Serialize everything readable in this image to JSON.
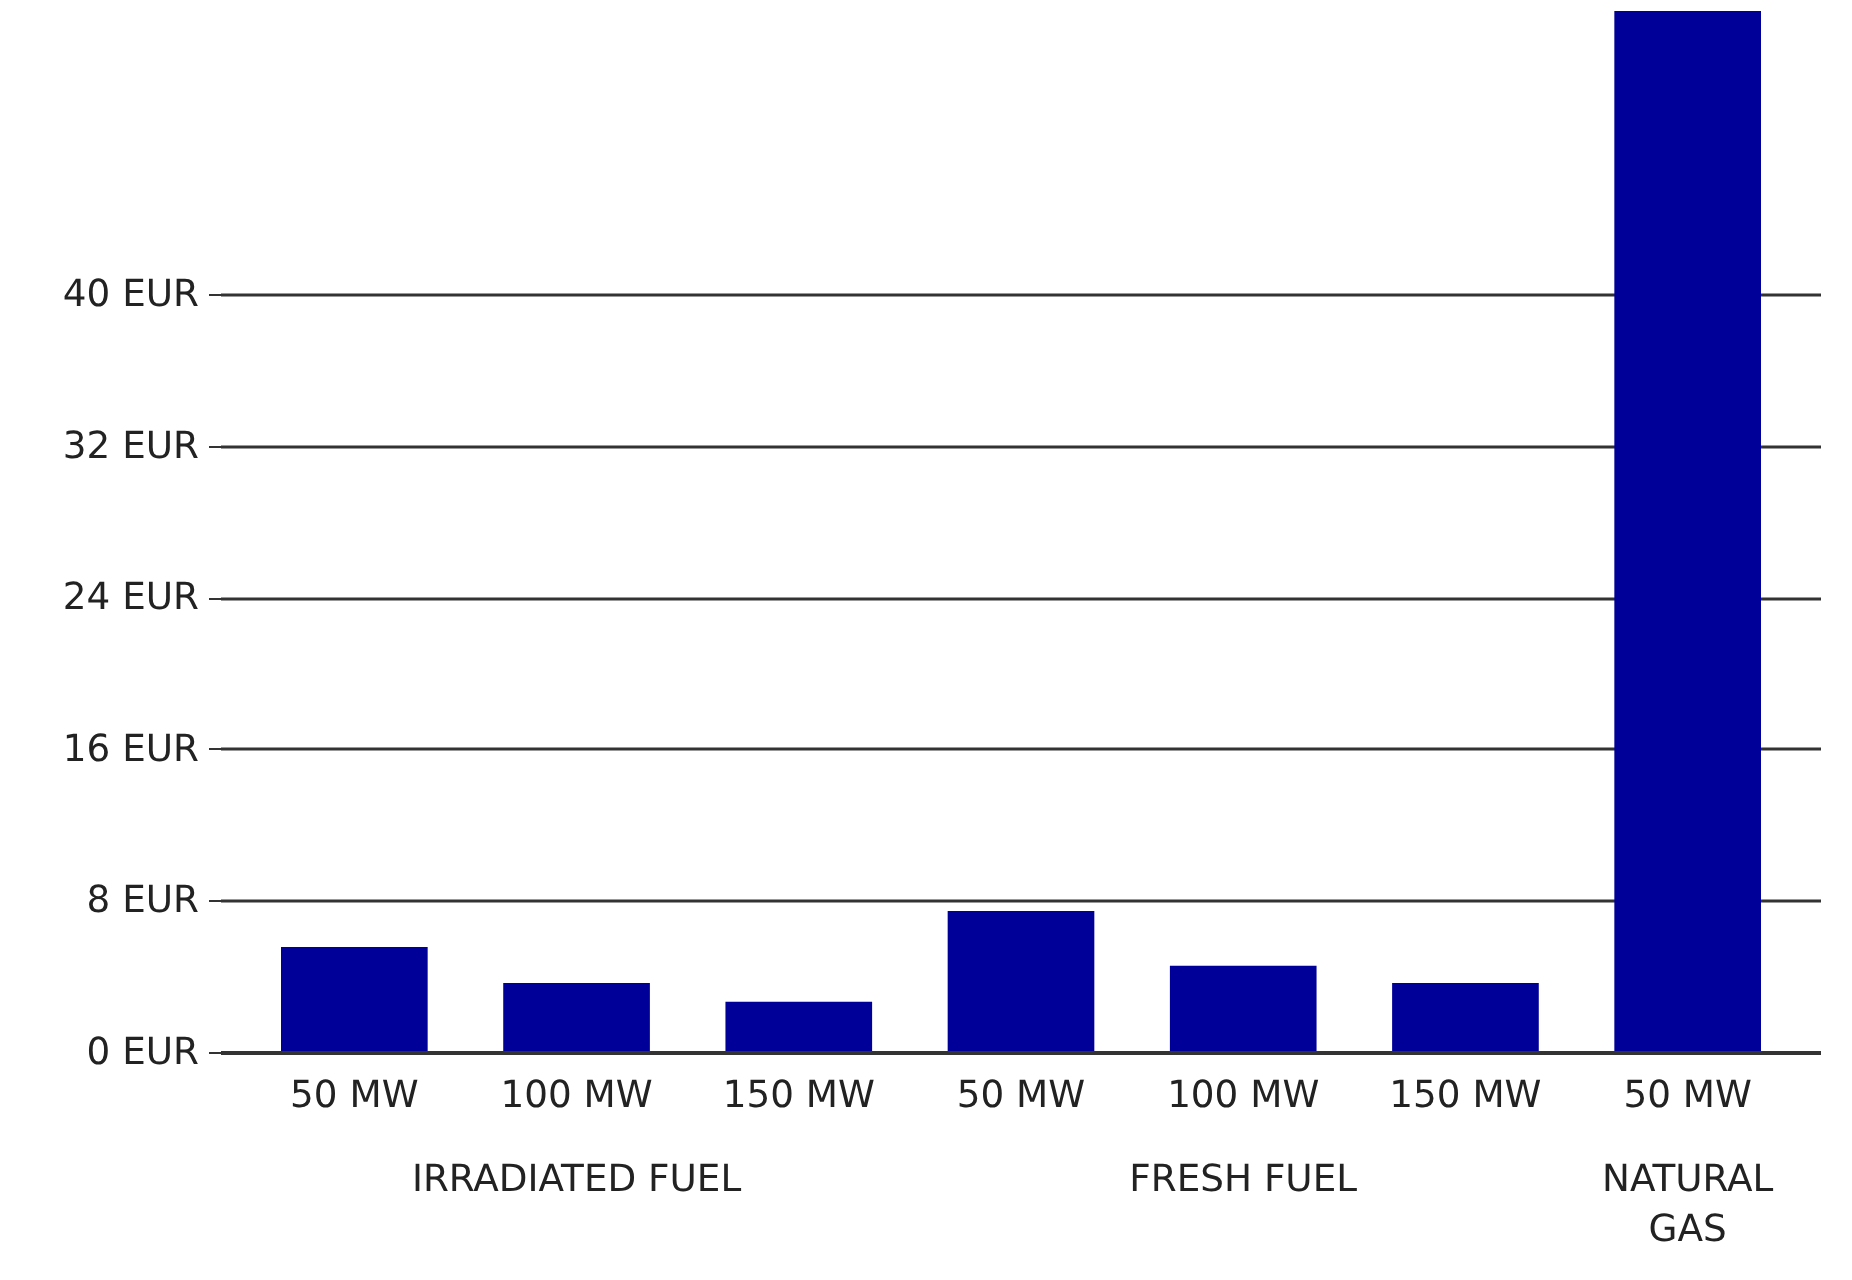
{
  "chart_data": {
    "type": "bar",
    "categories": [
      "50 MW",
      "100 MW",
      "150 MW",
      "50 MW",
      "100 MW",
      "150 MW",
      "50 MW"
    ],
    "values": [
      5.6,
      3.7,
      2.7,
      7.5,
      4.6,
      3.7,
      55
    ],
    "color": "#000099",
    "ylim": [
      0,
      55
    ],
    "yticks": [
      {
        "value": 0,
        "label": "0 EUR"
      },
      {
        "value": 8,
        "label": "8 EUR"
      },
      {
        "value": 16,
        "label": "16 EUR"
      },
      {
        "value": 24,
        "label": "24 EUR"
      },
      {
        "value": 32,
        "label": "32 EUR"
      },
      {
        "value": 40,
        "label": "40 EUR"
      }
    ],
    "grid": "y",
    "annotations": [
      "IRRADIATED FUEL",
      "FRESH FUEL",
      "NATURAL\nGAS"
    ]
  }
}
